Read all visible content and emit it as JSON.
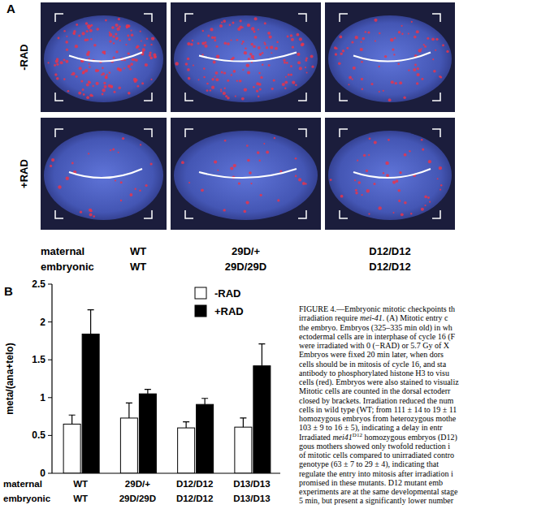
{
  "panel_a": {
    "label": "A",
    "row_labels": [
      "-RAD",
      "+RAD"
    ],
    "genotype_rows": [
      {
        "name": "maternal",
        "labels": [
          "WT",
          "29D/+",
          "D12/D12"
        ]
      },
      {
        "name": "embryonic",
        "labels": [
          "WT",
          "29D/29D",
          "D12/D12"
        ]
      }
    ]
  },
  "chart_data": {
    "type": "bar",
    "panel_label": "B",
    "y_label": "meta/(ana+telo)",
    "category_title": "maternal",
    "categories": [
      "WT",
      "29D/+",
      "D12/D12",
      "D13/D13"
    ],
    "category_2_title": "embryonic",
    "categories_2": [
      "WT",
      "29D/29D",
      "D12/D12",
      "D13/D13"
    ],
    "series": [
      {
        "name": "-RAD",
        "color": "#ffffff",
        "values": [
          0.65,
          0.73,
          0.6,
          0.61
        ],
        "errors": [
          0.12,
          0.2,
          0.08,
          0.12
        ]
      },
      {
        "name": "+RAD",
        "color": "#000000",
        "values": [
          1.84,
          1.05,
          0.91,
          1.42
        ],
        "errors": [
          0.32,
          0.06,
          0.08,
          0.29
        ]
      }
    ],
    "ylim": [
      0,
      2.5
    ],
    "yticks": [
      0,
      0.5,
      1,
      1.5,
      2,
      2.5
    ],
    "grid": false,
    "legend": "top-right"
  },
  "caption": {
    "lines": [
      [
        "FIGURE 4.—Embryonic mitotic checkpoints th"
      ],
      [
        "irradiation require ",
        {
          "text": "mei-41",
          "italic": true
        },
        ". (A) Mitotic entry c"
      ],
      [
        "the embryo. Embryos (325–335 min old) in wh"
      ],
      [
        "ectodermal cells are in interphase of cycle 16 (F"
      ],
      [
        "were irradiated with 0 (−RAD) or 5.7 Gy of X"
      ],
      [
        "Embryos were fixed 20 min later, when dors"
      ],
      [
        "cells should be in mitosis of cycle 16, and sta"
      ],
      [
        "antibody to phosphorylated histone H3 to visu"
      ],
      [
        "cells (red). Embryos were also stained to visualiz"
      ],
      [
        "Mitotic cells are counted in the dorsal ectoderr"
      ],
      [
        "closed by brackets. Irradiation reduced the num"
      ],
      [
        "cells in wild type (WT; from 111 ± 14 to 19 ± 11"
      ],
      [
        "homozygous embryos from heterozygous mothe"
      ],
      [
        "103 ± 9 to 16 ± 5), indicating a delay in entr"
      ],
      [
        "Irradiated ",
        {
          "text": "mei41",
          "italic": true
        },
        {
          "text": "D12",
          "sup": true
        },
        " homozygous embryos (D12)"
      ],
      [
        "gous mothers showed only twofold reduction i"
      ],
      [
        "of mitotic cells compared to unirradiated contro"
      ],
      [
        "genotype (63 ± 7 to 29 ± 4), indicating that"
      ],
      [
        "regulate the entry into mitosis after irradiation i"
      ],
      [
        "promised in these mutants. D12 mutant emb"
      ],
      [
        "experiments are at the same developmental stage"
      ],
      [
        "5 min, but present a significantly lower number"
      ]
    ]
  }
}
